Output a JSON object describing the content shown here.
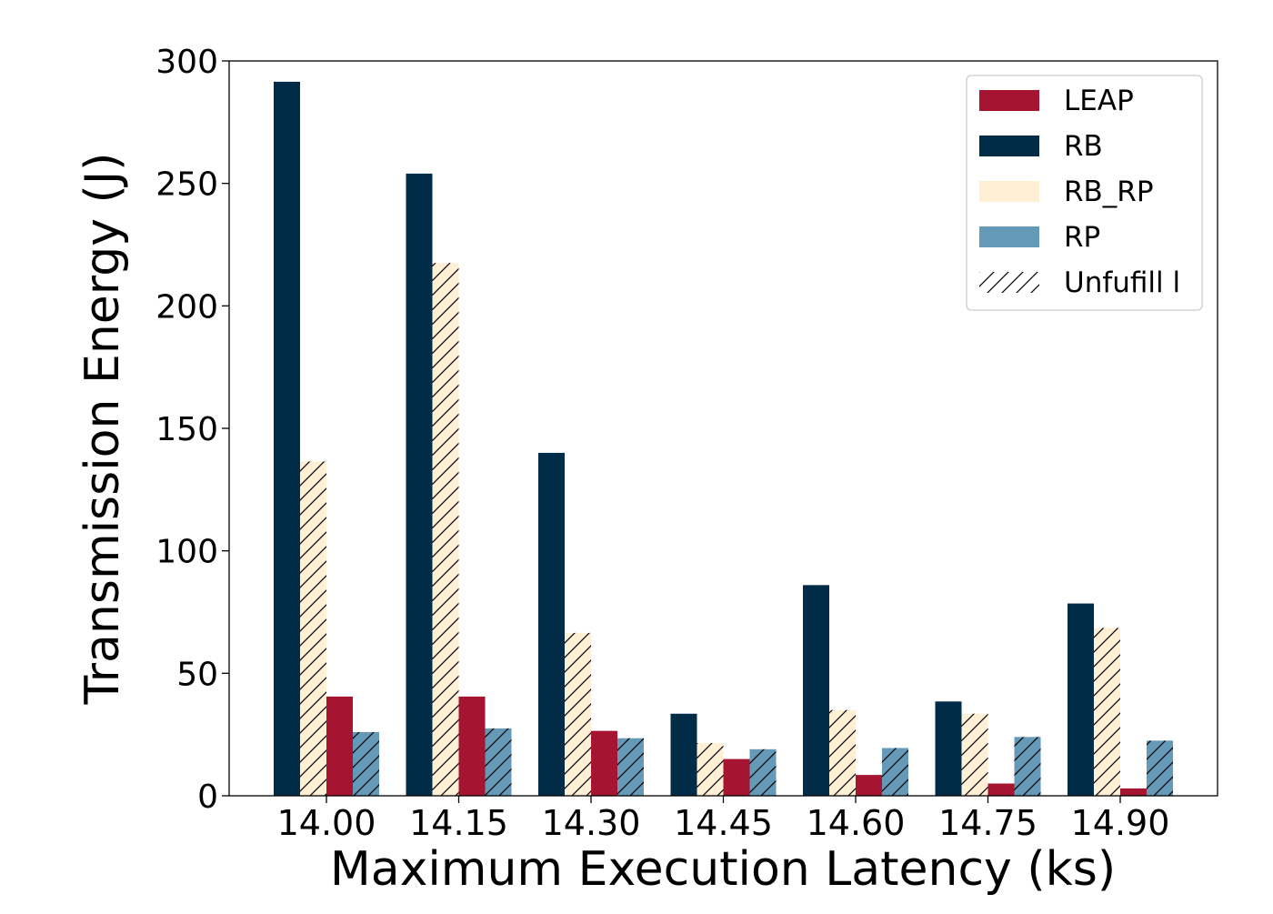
{
  "chart_data": {
    "type": "bar",
    "title": "",
    "xlabel": "Maximum Execution Latency (ks)",
    "ylabel": "Transmission Energy (J)",
    "ylim": [
      0,
      300
    ],
    "yticks": [
      0,
      50,
      100,
      150,
      200,
      250,
      300
    ],
    "categories": [
      "14.00",
      "14.15",
      "14.30",
      "14.45",
      "14.60",
      "14.75",
      "14.90"
    ],
    "bar_order": [
      "RB",
      "RB_RP",
      "LEAP",
      "RP"
    ],
    "series": [
      {
        "name": "LEAP",
        "color": "#a51431",
        "values": [
          40.5,
          40.5,
          26.5,
          15.0,
          8.5,
          5.0,
          3.0
        ],
        "unfulfilled": [
          false,
          false,
          false,
          false,
          false,
          false,
          false
        ]
      },
      {
        "name": "RB",
        "color": "#002c47",
        "values": [
          291.5,
          254.0,
          140.0,
          33.5,
          86.0,
          38.5,
          78.5
        ],
        "unfulfilled": [
          false,
          false,
          false,
          false,
          false,
          false,
          false
        ]
      },
      {
        "name": "RB_RP",
        "color": "#fff0d5",
        "values": [
          136.5,
          217.5,
          66.5,
          21.5,
          35.0,
          33.5,
          68.5
        ],
        "unfulfilled": [
          true,
          true,
          true,
          true,
          true,
          true,
          true
        ]
      },
      {
        "name": "RP",
        "color": "#6599b8",
        "values": [
          26.0,
          27.5,
          23.5,
          19.0,
          19.5,
          24.0,
          22.5
        ],
        "unfulfilled": [
          true,
          true,
          true,
          true,
          true,
          true,
          true
        ]
      }
    ],
    "legend": {
      "position": "top-right",
      "entries": [
        "LEAP",
        "RB",
        "RB_RP",
        "RP",
        "Unfufill l"
      ],
      "hatch_label": "Unfufill l"
    },
    "grid": false
  }
}
